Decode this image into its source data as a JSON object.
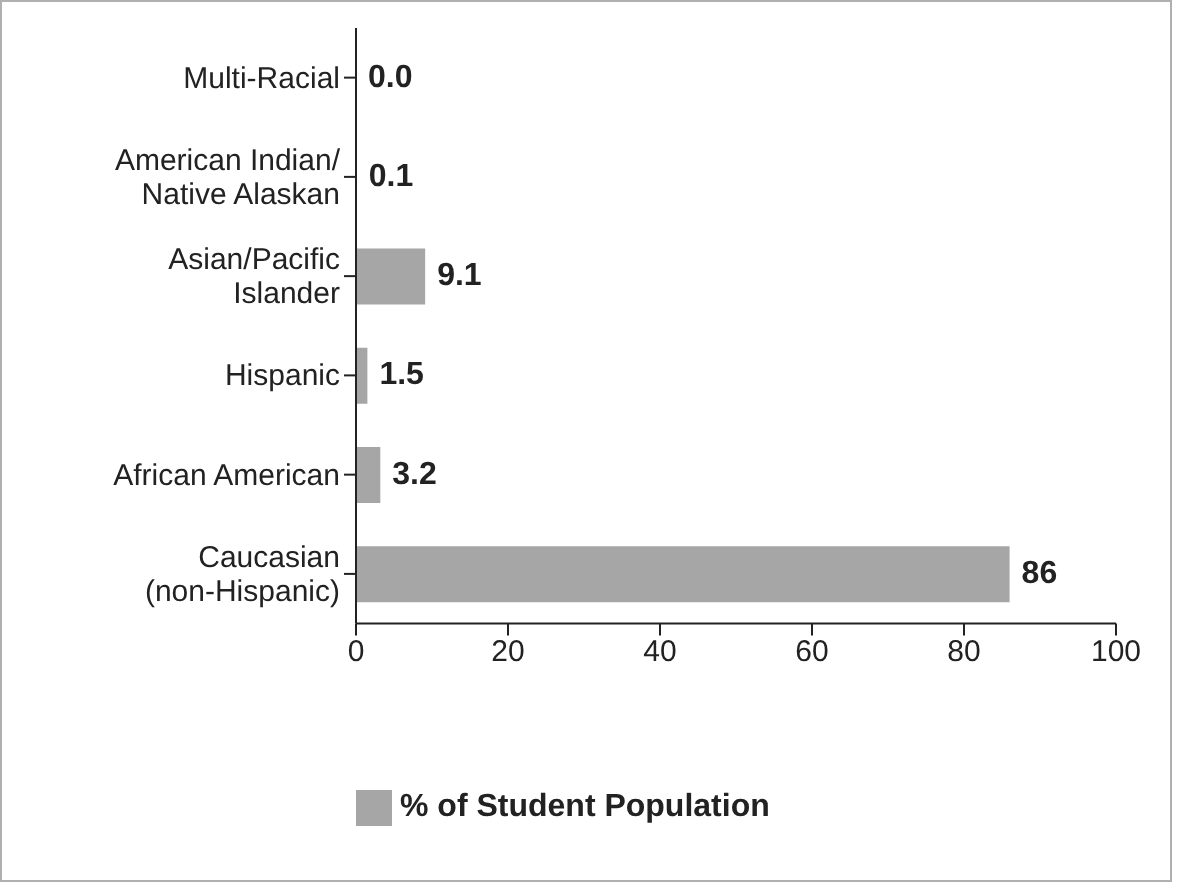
{
  "chart_data": {
    "type": "bar",
    "orientation": "horizontal",
    "categories": [
      "Multi-Racial",
      "American Indian/ Native Alaskan",
      "Asian/Pacific Islander",
      "Hispanic",
      "African American",
      "Caucasian (non-Hispanic)"
    ],
    "series": [
      {
        "name": "% of Student Population",
        "color": "#a6a6a6",
        "values": [
          0.0,
          0.1,
          9.1,
          1.5,
          3.2,
          86
        ]
      }
    ],
    "value_labels": [
      "0.0",
      "0.1",
      "9.1",
      "1.5",
      "3.2",
      "86"
    ],
    "xlim": [
      0,
      100
    ],
    "xticks": [
      0,
      20,
      40,
      60,
      80,
      100
    ],
    "grid": false,
    "legend": "bottom left"
  }
}
